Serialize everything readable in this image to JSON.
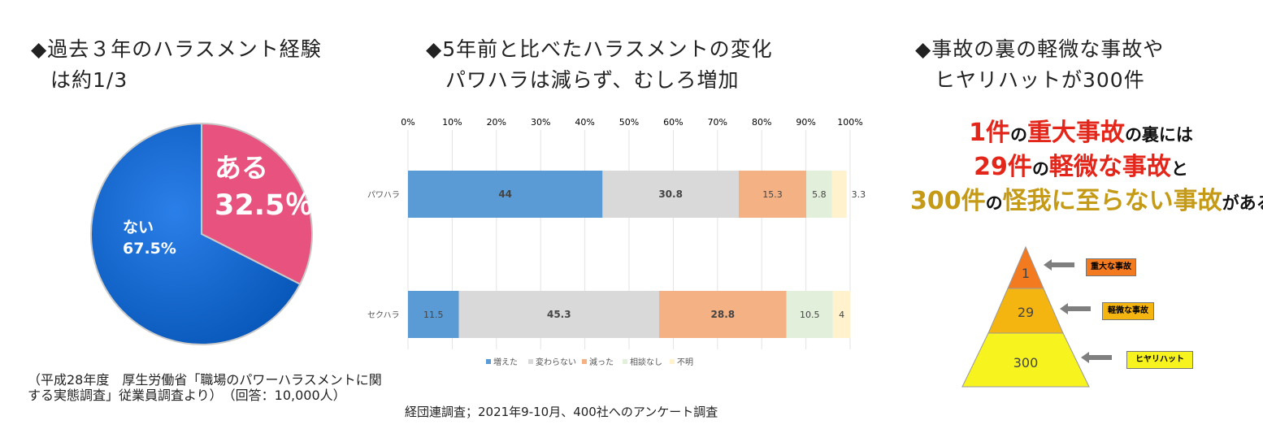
{
  "left": {
    "heading_line1": "◆過去３年のハラスメント経験",
    "heading_line2": "は約1/3",
    "pie": {
      "yes_label": "ある",
      "yes_value_label": "32.5％",
      "no_label": "ない",
      "no_value_label": "67.5%"
    },
    "note": "（平成28年度　厚生労働省「職場のパワーハラスメントに関する実態調査」従業員調査より）　（回答：10,000人）"
  },
  "middle": {
    "heading_line1": "◆5年前と比べたハラスメントの変化",
    "heading_line2": "パワハラは減らず、むしろ増加",
    "source": "経団連調査；2021年9-10月、400社へのアンケート調査"
  },
  "right": {
    "heading_line1": "◆事故の裏の軽微な事故や",
    "heading_line2": "ヒヤリハットが300件",
    "line1": {
      "a": "1件",
      "b": "の",
      "c": "重大事故",
      "d": "の裏には"
    },
    "line2": {
      "a": "29件",
      "b": "の",
      "c": "軽微な事故",
      "d": "と"
    },
    "line3": {
      "a": "300件",
      "b": "の",
      "c": "怪我に至らない事故",
      "d": "がある"
    },
    "pyramid": [
      {
        "value": "1",
        "label": "重大な事故",
        "color": "#f47a20",
        "label_bg": "#f47a20"
      },
      {
        "value": "29",
        "label": "軽微な事故",
        "color": "#f5b511",
        "label_bg": "#f5b511"
      },
      {
        "value": "300",
        "label": "ヒヤリハット",
        "color": "#f7f31e",
        "label_bg": "#f7f31e"
      }
    ]
  },
  "chart_data": [
    {
      "type": "pie",
      "categories": [
        "ある",
        "ない"
      ],
      "values": [
        32.5,
        67.5
      ],
      "colors": [
        "#e8527e",
        "#0f69d8"
      ]
    },
    {
      "type": "bar",
      "orientation": "horizontal",
      "stacked": true,
      "categories": [
        "パワハラ",
        "セクハラ"
      ],
      "xlim": [
        0,
        100
      ],
      "ticks": [
        "0%",
        "10%",
        "20%",
        "30%",
        "40%",
        "50%",
        "60%",
        "70%",
        "80%",
        "90%",
        "100%"
      ],
      "grid": true,
      "legend_position": "bottom",
      "series": [
        {
          "name": "増えた",
          "values": [
            44,
            11.5
          ],
          "color": "#5b9bd5"
        },
        {
          "name": "変わらない",
          "values": [
            30.8,
            45.3
          ],
          "color": "#d9d9d9"
        },
        {
          "name": "減った",
          "values": [
            15.3,
            28.8
          ],
          "color": "#f4b183"
        },
        {
          "name": "相談なし",
          "values": [
            5.8,
            10.5
          ],
          "color": "#e2efda"
        },
        {
          "name": "不明",
          "values": [
            3.3,
            4
          ],
          "color": "#fff2cc"
        }
      ]
    }
  ]
}
